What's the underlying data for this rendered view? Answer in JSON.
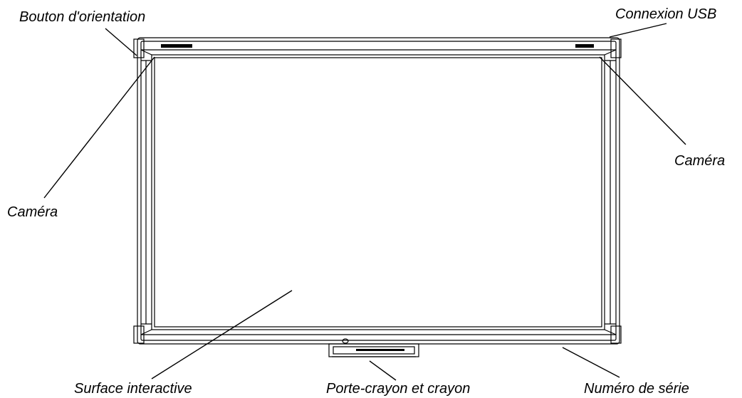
{
  "labels": {
    "orientation_button": "Bouton d'orientation",
    "usb_connection": "Connexion USB",
    "camera_left": "Caméra",
    "camera_right": "Caméra",
    "interactive_surface": "Surface interactive",
    "pen_tray": "Porte-crayon et crayon",
    "serial_number": "Numéro de série"
  },
  "colors": {
    "line": "#000000",
    "background": "#ffffff"
  }
}
